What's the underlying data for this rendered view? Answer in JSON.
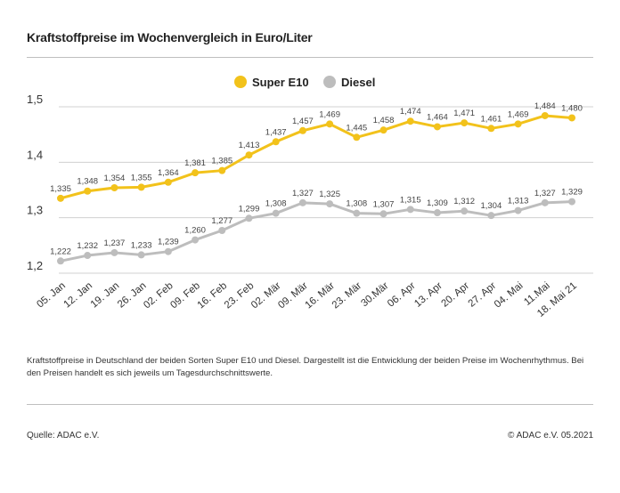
{
  "header": {
    "title": "Kraftstoffpreise im Wochenvergleich in Euro/Liter"
  },
  "footer": {
    "caption": "Kraftstoffpreise in Deutschland der beiden Sorten Super E10 und Diesel. Dargestellt ist die Entwicklung der beiden Preise im Wochenrhythmus. Bei den Preisen handelt es sich jeweils um Tagesdurchschnittswerte.",
    "source": "Quelle: ADAC e.V.",
    "copyright": "© ADAC e.V. 05.2021"
  },
  "chart_data": {
    "type": "line",
    "title": "Kraftstoffpreise im Wochenvergleich in Euro/Liter",
    "xlabel": "",
    "ylabel": "",
    "ylim": [
      1.2,
      1.5
    ],
    "yticks": [
      1.2,
      1.3,
      1.4,
      1.5
    ],
    "ytick_labels": [
      "1,2",
      "1,3",
      "1,4",
      "1,5"
    ],
    "grid": true,
    "legend_position": "top-center",
    "categories": [
      "05. Jan",
      "12. Jan",
      "19. Jan",
      "26. Jan",
      "02. Feb",
      "09. Feb",
      "16. Feb",
      "23. Feb",
      "02. Mär",
      "09. Mär",
      "16. Mär",
      "23. Mär",
      "30.Mär",
      "06. Apr",
      "13. Apr",
      "20. Apr",
      "27. Apr",
      "04. Mai",
      "11.Mai",
      "18. Mai 21"
    ],
    "series": [
      {
        "name": "Super E10",
        "color": "#f2c21b",
        "values": [
          1.335,
          1.348,
          1.354,
          1.355,
          1.364,
          1.381,
          1.385,
          1.413,
          1.437,
          1.457,
          1.469,
          1.445,
          1.458,
          1.474,
          1.464,
          1.471,
          1.461,
          1.469,
          1.484,
          1.48
        ],
        "labels": [
          "1,335",
          "1,348",
          "1,354",
          "1,355",
          "1,364",
          "1,381",
          "1,385",
          "1,413",
          "1,437",
          "1,457",
          "1,469",
          "1,445",
          "1,458",
          "1,474",
          "1,464",
          "1,471",
          "1,461",
          "1,469",
          "1,484",
          "1,480"
        ]
      },
      {
        "name": "Diesel",
        "color": "#bdbdbd",
        "values": [
          1.222,
          1.232,
          1.237,
          1.233,
          1.239,
          1.26,
          1.277,
          1.299,
          1.308,
          1.327,
          1.325,
          1.308,
          1.307,
          1.315,
          1.309,
          1.312,
          1.304,
          1.313,
          1.327,
          1.329
        ],
        "labels": [
          "1,222",
          "1,232",
          "1,237",
          "1,233",
          "1,239",
          "1,260",
          "1,277",
          "1,299",
          "1,308",
          "1,327",
          "1,325",
          "1,308",
          "1,307",
          "1,315",
          "1,309",
          "1,312",
          "1,304",
          "1,313",
          "1,327",
          "1,329"
        ]
      }
    ]
  }
}
